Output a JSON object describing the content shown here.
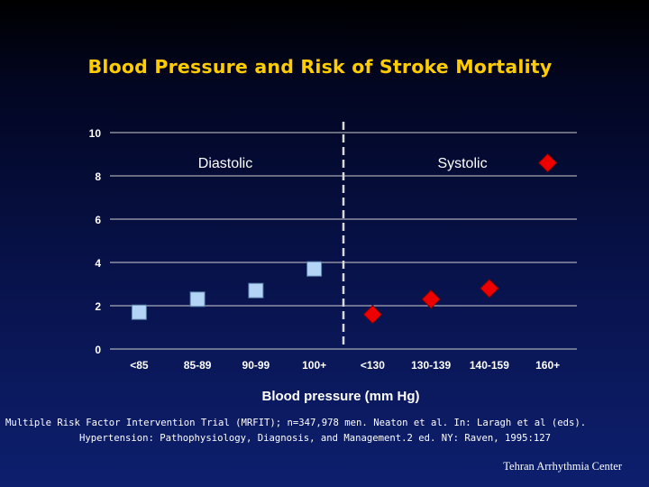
{
  "slide": {
    "title": "Blood Pressure and Risk of Stroke Mortality",
    "citation_line1": "Multiple Risk Factor Intervention Trial (MRFIT); n=347,978 men. Neaton et al. In: Laragh et al (eds).",
    "citation_line2": "Hypertension: Pathophysiology, Diagnosis, and Management.2 ed. NY: Raven, 1995:127",
    "credit": "Tehran Arrhythmia Center"
  },
  "chart_data": {
    "type": "scatter",
    "title": "Blood Pressure and Risk of Stroke Mortality",
    "xlabel": "Blood pressure (mm Hg)",
    "ylabel": "",
    "categories": [
      "<85",
      "85-89",
      "90-99",
      "100+",
      "<130",
      "130-139",
      "140-159",
      "160+"
    ],
    "ylim": [
      0,
      10
    ],
    "yticks": [
      0,
      2,
      4,
      6,
      8,
      10
    ],
    "grid": true,
    "divider_between": [
      "100+",
      "<130"
    ],
    "series": [
      {
        "name": "Diastolic",
        "marker": "square",
        "color": "#b3d4f5",
        "categories": [
          "<85",
          "85-89",
          "90-99",
          "100+"
        ],
        "values": [
          1.7,
          2.3,
          2.7,
          3.7
        ]
      },
      {
        "name": "Systolic",
        "marker": "diamond",
        "color": "#ee0000",
        "categories": [
          "<130",
          "130-139",
          "140-159",
          "160+"
        ],
        "values": [
          1.6,
          2.3,
          2.8,
          8.6
        ]
      }
    ]
  }
}
